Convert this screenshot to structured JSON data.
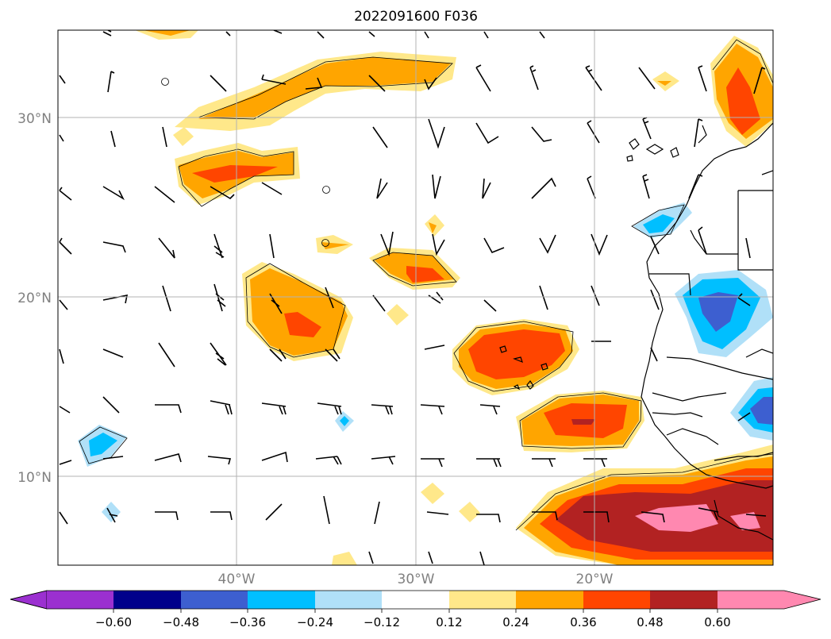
{
  "title": "2022091600 F036",
  "map": {
    "lat_labels": [
      "30°N",
      "20°N",
      "10°N"
    ],
    "lon_labels": [
      "40°W",
      "30°W",
      "20°W"
    ],
    "lat_values": [
      30,
      20,
      10
    ],
    "lon_values": [
      -40,
      -30,
      -20
    ],
    "extent": {
      "lon_min": -50,
      "lon_max": -10,
      "lat_min": 5,
      "lat_max": 35
    },
    "grid": true
  },
  "colorbar": {
    "ticks": [
      "−0.60",
      "−0.48",
      "−0.36",
      "−0.24",
      "−0.12",
      "0.12",
      "0.24",
      "0.36",
      "0.48",
      "0.60"
    ],
    "colors": {
      "lt_-0.60": "#9b30d0",
      "-0.60_-0.48": "#00008b",
      "-0.48_-0.36": "#3d5fd0",
      "-0.36_-0.24": "#00bfff",
      "-0.24_-0.12": "#b0e0f8",
      "-0.12_0.12": "#ffffff",
      "0.12_0.24": "#ffe88a",
      "0.24_0.36": "#ffa500",
      "0.36_0.48": "#ff4500",
      "0.48_0.60": "#b22222",
      "gt_0.60": "#ff88b0"
    }
  }
}
